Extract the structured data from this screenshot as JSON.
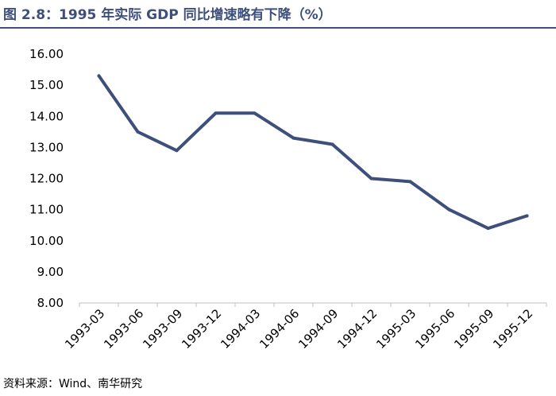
{
  "header": {
    "title": "图 2.8：1995 年实际 GDP 同比增速略有下降（%）"
  },
  "footer": {
    "source": "资料来源：Wind、南华研究"
  },
  "colors": {
    "line": "#3d4f7a",
    "title": "#3d4f7a"
  },
  "chart_data": {
    "type": "line",
    "title": "图 2.8：1995 年实际 GDP 同比增速略有下降（%）",
    "xlabel": "",
    "ylabel": "",
    "categories": [
      "1993-03",
      "1993-06",
      "1993-09",
      "1993-12",
      "1994-03",
      "1994-06",
      "1994-09",
      "1994-12",
      "1995-03",
      "1995-06",
      "1995-09",
      "1995-12"
    ],
    "series": [
      {
        "values": [
          15.3,
          13.5,
          12.9,
          14.1,
          14.1,
          13.3,
          13.1,
          12.0,
          11.9,
          11.0,
          10.4,
          10.8
        ]
      }
    ],
    "ylim": [
      8.0,
      16.0
    ],
    "yticks": [
      "16.00",
      "15.00",
      "14.00",
      "13.00",
      "12.00",
      "11.00",
      "10.00",
      "9.00",
      "8.00"
    ],
    "grid": false,
    "legend": "none"
  }
}
